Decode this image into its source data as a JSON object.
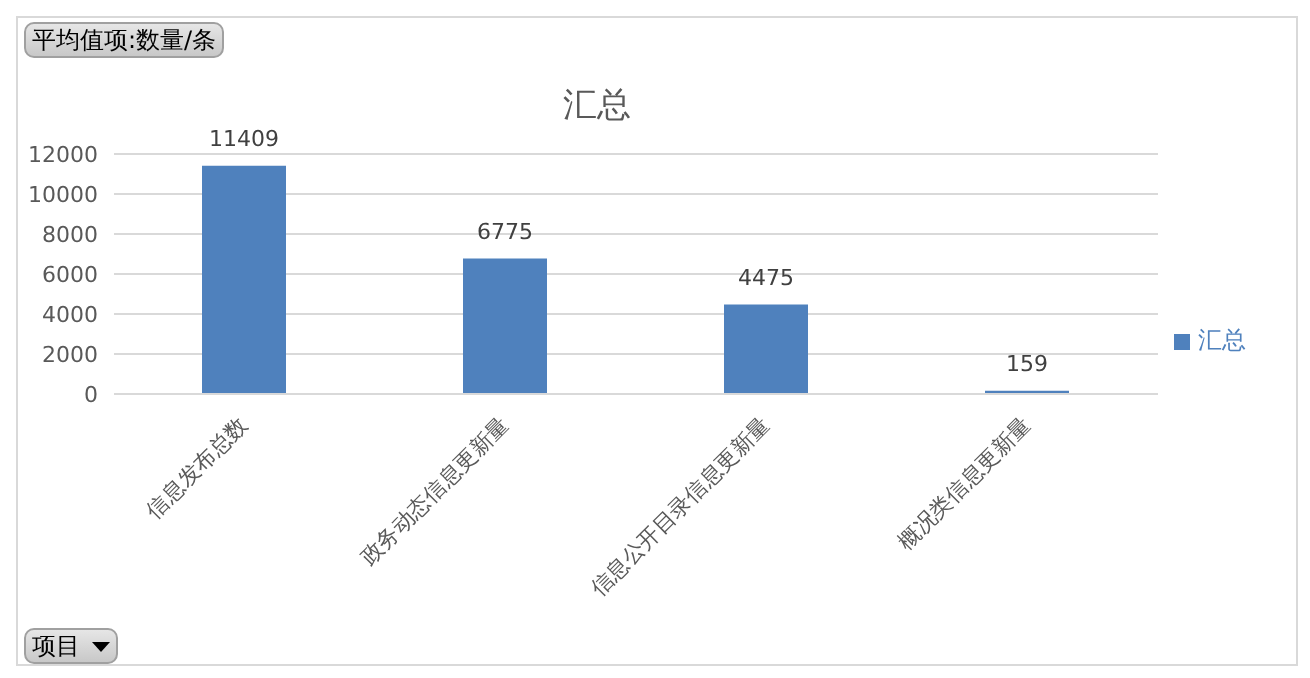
{
  "chart_data": {
    "type": "bar",
    "title": "汇总",
    "categories": [
      "信息发布总数",
      "政务动态信息更新量",
      "信息公开目录信息更新量",
      "概况类信息更新量"
    ],
    "series": [
      {
        "name": "汇总",
        "color": "#4f81bd",
        "values": [
          11409,
          6775,
          4475,
          159
        ]
      }
    ],
    "ylim": [
      0,
      12000
    ],
    "yticks": [
      0,
      2000,
      4000,
      6000,
      8000,
      10000,
      12000
    ],
    "grid": "y",
    "legend": "right",
    "data_labels": true,
    "annotations": [
      "平均值项:数量/条",
      "项目"
    ]
  }
}
